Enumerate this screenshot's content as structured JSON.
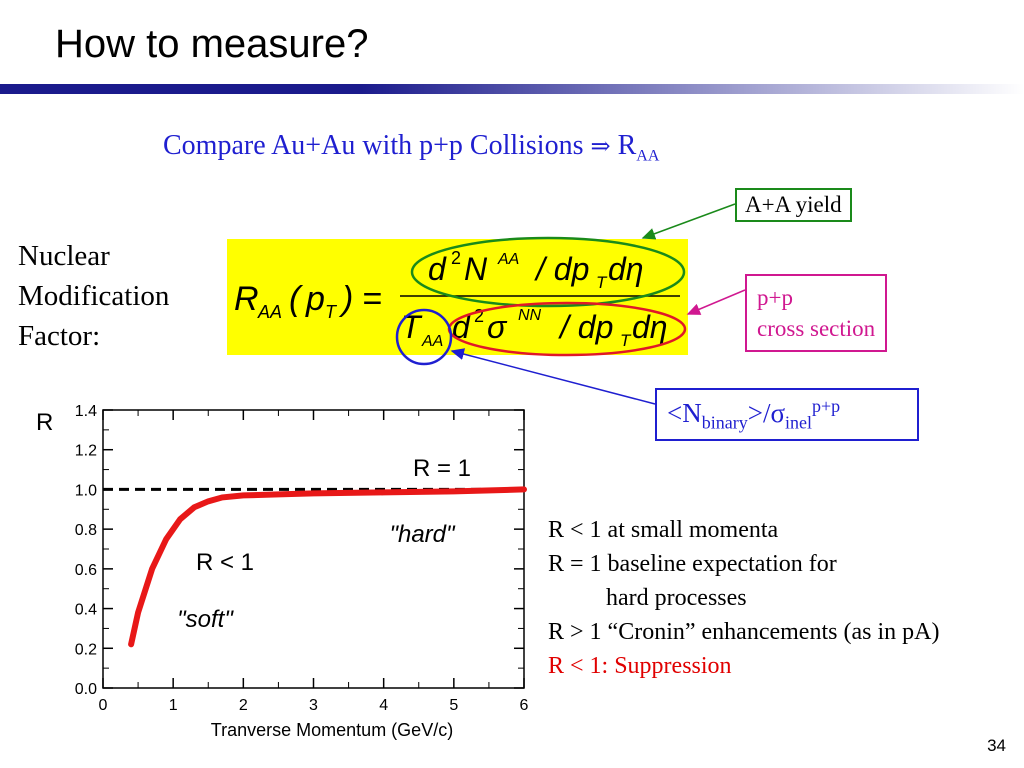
{
  "slide": {
    "title": "How to measure?",
    "subtitle": {
      "text": "Compare Au+Au with p+p Collisions",
      "arrow": "⇒",
      "r": "R",
      "r_sub": "AA"
    },
    "label_lines": [
      "Nuclear",
      "Modification",
      "Factor:"
    ],
    "page_number": "34"
  },
  "formula": {
    "lhs_R": "R",
    "lhs_sub": "AA",
    "lhs_arg": "p",
    "lhs_arg_sub": "T",
    "numerator": {
      "d": "d",
      "exp": "2",
      "N": "N",
      "N_sup": "AA",
      "rest": "/ dp",
      "rest_sub": "T",
      "deta": "dη"
    },
    "denominator": {
      "T": "T",
      "T_sub": "AA",
      "d": "d",
      "exp": "2",
      "sigma": "σ",
      "sigma_sup": "NN",
      "rest": "/ dp",
      "rest_sub": "T",
      "deta": "dη"
    }
  },
  "annotations": {
    "aa_yield": "A+A yield",
    "pp_lines": [
      "p+p",
      "cross section"
    ],
    "nbinary": {
      "lt": "<N",
      "sub1": "binary",
      "gt": ">/σ",
      "sub2": "inel",
      "sup": "p+p"
    }
  },
  "notes": [
    {
      "text": "R < 1 at small momenta",
      "color": "#000000",
      "indent": false
    },
    {
      "text": "R = 1 baseline expectation for",
      "color": "#000000",
      "indent": false
    },
    {
      "text": "hard processes",
      "color": "#000000",
      "indent": true
    },
    {
      "text": "R > 1 “Cronin” enhancements (as in pA)",
      "color": "#000000",
      "indent": false
    },
    {
      "text": "R < 1: Suppression",
      "color": "#e00000",
      "indent": false
    }
  ],
  "colors": {
    "title_rule": "#1a1a8c",
    "subtitle": "#1f1fd0",
    "green": "#1a8a1a",
    "magenta": "#d01890",
    "blue": "#1f1fd0",
    "curve": "#e81818",
    "highlight": "#ffff00"
  },
  "chart_data": {
    "type": "line",
    "title": "",
    "xlabel": "Tranverse Momentum (GeV/c)",
    "ylabel": "R",
    "xlim": [
      0,
      6
    ],
    "ylim": [
      0,
      1.4
    ],
    "xticks": [
      "0",
      "1",
      "2",
      "3",
      "4",
      "5",
      "6"
    ],
    "yticks": [
      "0.0",
      "0.2",
      "0.4",
      "0.6",
      "0.8",
      "1.0",
      "1.2",
      "1.4"
    ],
    "series": [
      {
        "x": [
          0.4,
          0.5,
          0.7,
          0.9,
          1.1,
          1.3,
          1.5,
          1.7,
          2.0,
          2.5,
          3.0,
          4.0,
          5.0,
          6.0
        ],
        "y": [
          0.22,
          0.38,
          0.6,
          0.75,
          0.85,
          0.91,
          0.94,
          0.96,
          0.97,
          0.975,
          0.98,
          0.985,
          0.99,
          1.0
        ]
      }
    ],
    "reference_line": {
      "y": 1.0,
      "style": "dashed"
    },
    "annotations": [
      "R = 1",
      "\"hard\"",
      "R < 1",
      "\"soft\""
    ]
  }
}
